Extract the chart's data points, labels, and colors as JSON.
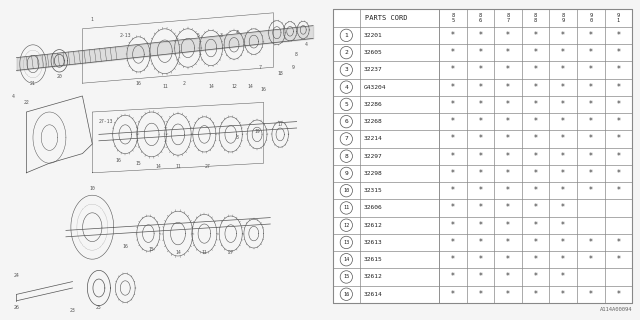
{
  "diagram_label": "A114A00094",
  "table_header": "PARTS CORD",
  "year_cols": [
    "85",
    "86",
    "87",
    "88",
    "89",
    "90",
    "91"
  ],
  "rows": [
    {
      "num": 1,
      "part": "32201",
      "stars": [
        1,
        1,
        1,
        1,
        1,
        1,
        1
      ]
    },
    {
      "num": 2,
      "part": "32605",
      "stars": [
        1,
        1,
        1,
        1,
        1,
        1,
        1
      ]
    },
    {
      "num": 3,
      "part": "32237",
      "stars": [
        1,
        1,
        1,
        1,
        1,
        1,
        1
      ]
    },
    {
      "num": 4,
      "part": "G43204",
      "stars": [
        1,
        1,
        1,
        1,
        1,
        1,
        1
      ]
    },
    {
      "num": 5,
      "part": "32286",
      "stars": [
        1,
        1,
        1,
        1,
        1,
        1,
        1
      ]
    },
    {
      "num": 6,
      "part": "32268",
      "stars": [
        1,
        1,
        1,
        1,
        1,
        1,
        1
      ]
    },
    {
      "num": 7,
      "part": "32214",
      "stars": [
        1,
        1,
        1,
        1,
        1,
        1,
        1
      ]
    },
    {
      "num": 8,
      "part": "32297",
      "stars": [
        1,
        1,
        1,
        1,
        1,
        1,
        1
      ]
    },
    {
      "num": 9,
      "part": "32298",
      "stars": [
        1,
        1,
        1,
        1,
        1,
        1,
        1
      ]
    },
    {
      "num": 10,
      "part": "32315",
      "stars": [
        1,
        1,
        1,
        1,
        1,
        1,
        1
      ]
    },
    {
      "num": 11,
      "part": "32606",
      "stars": [
        1,
        1,
        1,
        1,
        1,
        0,
        0
      ]
    },
    {
      "num": 12,
      "part": "32612",
      "stars": [
        1,
        1,
        1,
        1,
        1,
        0,
        0
      ]
    },
    {
      "num": 13,
      "part": "32613",
      "stars": [
        1,
        1,
        1,
        1,
        1,
        1,
        1
      ]
    },
    {
      "num": 14,
      "part": "32615",
      "stars": [
        1,
        1,
        1,
        1,
        1,
        1,
        1
      ]
    },
    {
      "num": 15,
      "part": "32612",
      "stars": [
        1,
        1,
        1,
        1,
        1,
        0,
        0
      ]
    },
    {
      "num": 16,
      "part": "32614",
      "stars": [
        1,
        1,
        1,
        1,
        1,
        1,
        1
      ]
    }
  ],
  "bg_color": "#f5f5f5",
  "table_bg": "#ffffff",
  "line_color": "#888888",
  "text_color": "#222222",
  "diag_color": "#555555",
  "diag_bg": "#f5f5f5"
}
